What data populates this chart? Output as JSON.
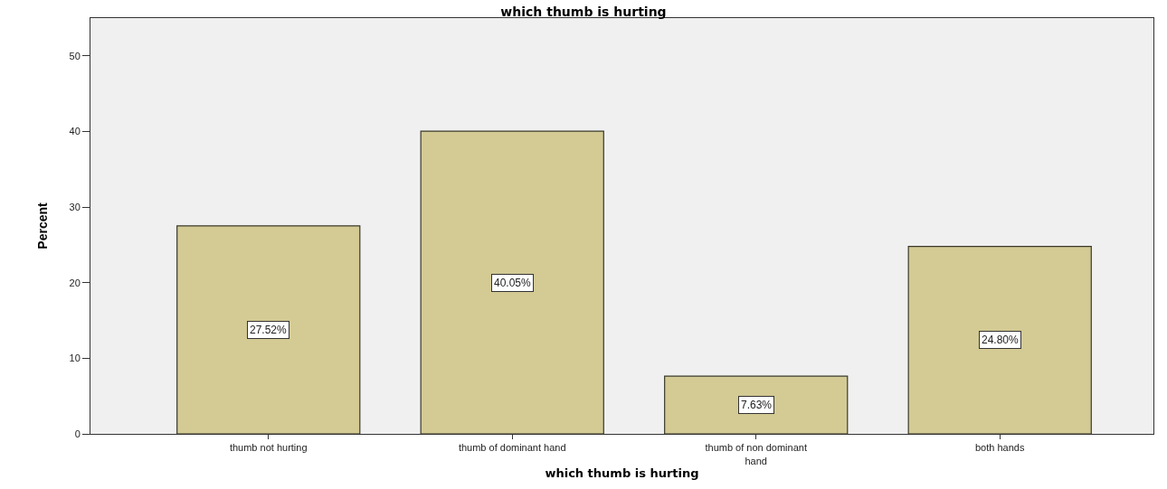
{
  "chart_data": {
    "type": "bar",
    "title": "which thumb is hurting",
    "xlabel": "which thumb is hurting",
    "ylabel": "Percent",
    "categories": [
      "thumb not hurting",
      "thumb of dominant hand",
      "thumb of non dominant hand",
      "both hands"
    ],
    "values": [
      27.52,
      40.05,
      7.63,
      24.8
    ],
    "value_labels": [
      "27.52%",
      "40.05%",
      "7.63%",
      "24.80%"
    ],
    "color": "#d3ca94",
    "ylim": [
      0,
      55
    ],
    "yticks": [
      0,
      10,
      20,
      30,
      40,
      50
    ],
    "grid": false
  }
}
